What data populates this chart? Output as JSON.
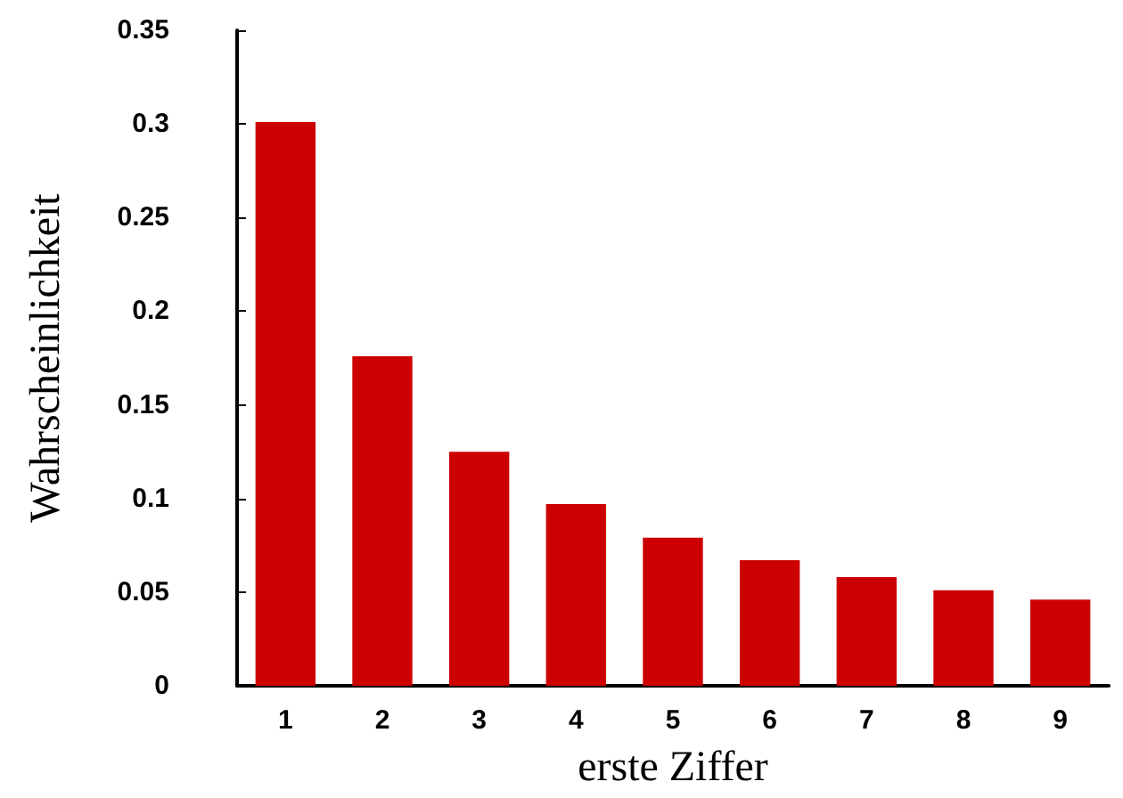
{
  "chart_data": {
    "type": "bar",
    "xlabel": "erste Ziffer",
    "ylabel": "Wahrscheinlichkeit",
    "categories": [
      "1",
      "2",
      "3",
      "4",
      "5",
      "6",
      "7",
      "8",
      "9"
    ],
    "values": [
      0.301,
      0.176,
      0.125,
      0.097,
      0.079,
      0.067,
      0.058,
      0.051,
      0.046
    ],
    "color": "#cc0000",
    "ylim": [
      0,
      0.35
    ],
    "yticks": [
      0,
      0.05,
      0.1,
      0.15,
      0.2,
      0.25,
      0.3,
      0.35
    ],
    "grid": false
  }
}
